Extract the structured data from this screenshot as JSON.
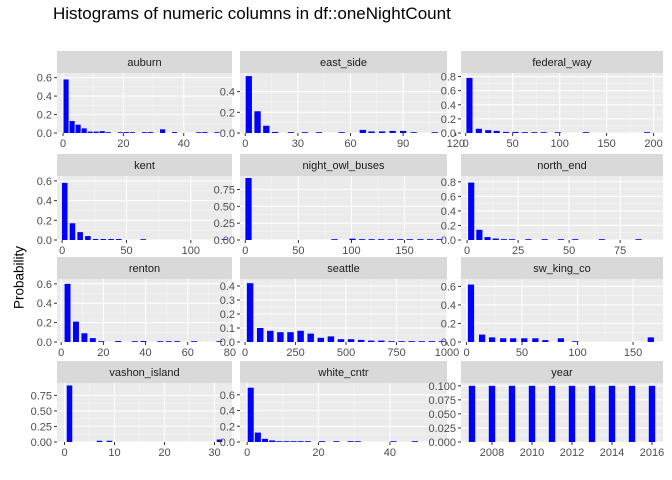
{
  "title": "Histograms of numeric columns in df::oneNightCount",
  "ylabel": "Probability",
  "colors": {
    "bar": "#0000ff",
    "panel_bg": "#ebebeb",
    "strip_bg": "#d9d9d9",
    "grid_major": "#ffffff",
    "grid_minor": "#f5f5f5"
  },
  "chart_data": [
    {
      "type": "bar",
      "name": "auburn",
      "xlim": [
        -2,
        56
      ],
      "ylim": [
        0,
        0.65
      ],
      "xticks": [
        0,
        20,
        40
      ],
      "yticks": [
        0.0,
        0.2,
        0.4,
        0.6
      ],
      "ytick_labels": [
        "0.0",
        "0.2",
        "0.4",
        "0.6"
      ],
      "bar_width": 1.7,
      "x": [
        1,
        3,
        5,
        7,
        9,
        11,
        13,
        15,
        19,
        21,
        23,
        27,
        29,
        33,
        37,
        45,
        47,
        51
      ],
      "y": [
        0.58,
        0.13,
        0.09,
        0.05,
        0.015,
        0.015,
        0.02,
        0.005,
        0.005,
        0.01,
        0.005,
        0.005,
        0.01,
        0.04,
        0.01,
        0.005,
        0.01,
        0.005
      ]
    },
    {
      "type": "bar",
      "name": "east_side",
      "xlim": [
        -3,
        115
      ],
      "ylim": [
        0,
        0.58
      ],
      "xticks": [
        0,
        30,
        60,
        90,
        120
      ],
      "yticks": [
        0.0,
        0.2,
        0.4
      ],
      "ytick_labels": [
        "0.0",
        "0.2",
        "0.4"
      ],
      "bar_width": 3.6,
      "x": [
        2,
        7,
        12,
        17,
        26,
        34,
        42,
        55,
        67,
        72,
        78,
        84,
        90,
        96,
        108
      ],
      "y": [
        0.55,
        0.21,
        0.07,
        0.01,
        0.005,
        0.005,
        0.005,
        0.005,
        0.03,
        0.015,
        0.015,
        0.02,
        0.02,
        0.005,
        0.005
      ]
    },
    {
      "type": "bar",
      "name": "federal_way",
      "xlim": [
        -5,
        210
      ],
      "ylim": [
        0,
        0.85
      ],
      "xticks": [
        0,
        50,
        100,
        150,
        200
      ],
      "yticks": [
        0.0,
        0.2,
        0.4,
        0.6,
        0.8
      ],
      "ytick_labels": [
        "0.0",
        "0.2",
        "0.4",
        "0.6",
        "0.8"
      ],
      "bar_width": 6.5,
      "x": [
        4,
        14,
        24,
        33,
        43,
        53,
        63,
        73,
        83,
        98,
        128,
        193
      ],
      "y": [
        0.78,
        0.06,
        0.04,
        0.03,
        0.015,
        0.015,
        0.01,
        0.005,
        0.005,
        0.005,
        0.005,
        0.005
      ]
    },
    {
      "type": "bar",
      "name": "kent",
      "xlim": [
        -4,
        132
      ],
      "ylim": [
        0,
        0.65
      ],
      "xticks": [
        0,
        50,
        100
      ],
      "yticks": [
        0.0,
        0.2,
        0.4,
        0.6
      ],
      "ytick_labels": [
        "0.0",
        "0.2",
        "0.4",
        "0.6"
      ],
      "bar_width": 4.3,
      "x": [
        2,
        8,
        14,
        20,
        26,
        32,
        38,
        44,
        63,
        126
      ],
      "y": [
        0.58,
        0.17,
        0.08,
        0.04,
        0.01,
        0.01,
        0.01,
        0.01,
        0.005,
        0.005
      ]
    },
    {
      "type": "bar",
      "name": "night_owl_buses",
      "xlim": [
        -5,
        190
      ],
      "ylim": [
        0,
        0.95
      ],
      "xticks": [
        0,
        50,
        100,
        150
      ],
      "yticks": [
        0.0,
        0.25,
        0.5,
        0.75
      ],
      "ytick_labels": [
        "0.00",
        "0.25",
        "0.50",
        "0.75"
      ],
      "bar_width": 5.9,
      "x": [
        3,
        84,
        101,
        110,
        119,
        128,
        137,
        146,
        155,
        165,
        174,
        183
      ],
      "y": [
        0.92,
        0.005,
        0.02,
        0.01,
        0.005,
        0.005,
        0.01,
        0.005,
        0.01,
        0.005,
        0.005,
        0.01
      ]
    },
    {
      "type": "bar",
      "name": "north_end",
      "xlim": [
        -3,
        96
      ],
      "ylim": [
        0,
        0.88
      ],
      "xticks": [
        0,
        25,
        50,
        75
      ],
      "yticks": [
        0.0,
        0.2,
        0.4,
        0.6,
        0.8
      ],
      "ytick_labels": [
        "0.0",
        "0.2",
        "0.4",
        "0.6",
        "0.8"
      ],
      "bar_width": 3.0,
      "x": [
        2,
        6,
        10,
        14,
        18,
        22,
        30,
        38,
        46,
        53,
        66,
        84
      ],
      "y": [
        0.79,
        0.14,
        0.04,
        0.02,
        0.01,
        0.005,
        0.005,
        0.005,
        0.005,
        0.01,
        0.005,
        0.005
      ]
    },
    {
      "type": "bar",
      "name": "renton",
      "xlim": [
        -2,
        81
      ],
      "ylim": [
        0,
        0.65
      ],
      "xticks": [
        0,
        20,
        40,
        60,
        80
      ],
      "yticks": [
        0.0,
        0.2,
        0.4,
        0.6
      ],
      "ytick_labels": [
        "0.0",
        "0.2",
        "0.4",
        "0.6"
      ],
      "bar_width": 2.8,
      "x": [
        3,
        7,
        11,
        15,
        19,
        27,
        35,
        39,
        47,
        51,
        55,
        63,
        75
      ],
      "y": [
        0.6,
        0.21,
        0.09,
        0.04,
        0.005,
        0.01,
        0.005,
        0.01,
        0.005,
        0.005,
        0.005,
        0.005,
        0.005
      ]
    },
    {
      "type": "bar",
      "name": "seattle",
      "xlim": [
        -25,
        1000
      ],
      "ylim": [
        0,
        0.45
      ],
      "xticks": [
        0,
        250,
        500,
        750,
        1000
      ],
      "yticks": [
        0.0,
        0.1,
        0.2,
        0.3,
        0.4
      ],
      "ytick_labels": [
        "0.0",
        "0.1",
        "0.2",
        "0.3",
        "0.4"
      ],
      "bar_width": 32,
      "x": [
        25,
        75,
        125,
        175,
        225,
        275,
        325,
        375,
        425,
        475,
        525,
        575,
        625,
        675,
        725,
        775,
        825,
        875,
        925,
        975
      ],
      "y": [
        0.42,
        0.1,
        0.08,
        0.07,
        0.07,
        0.08,
        0.06,
        0.03,
        0.04,
        0.02,
        0.02,
        0.015,
        0.01,
        0.01,
        0.005,
        0.005,
        0.005,
        0.005,
        0.005,
        0.005
      ]
    },
    {
      "type": "bar",
      "name": "sw_king_co",
      "xlim": [
        -5,
        177
      ],
      "ylim": [
        0,
        0.68
      ],
      "xticks": [
        0,
        50,
        100,
        150
      ],
      "yticks": [
        0.0,
        0.2,
        0.4,
        0.6
      ],
      "ytick_labels": [
        "0.0",
        "0.2",
        "0.4",
        "0.6"
      ],
      "bar_width": 5.6,
      "x": [
        4,
        14,
        23,
        33,
        42,
        52,
        62,
        71,
        85,
        98,
        166
      ],
      "y": [
        0.62,
        0.08,
        0.05,
        0.04,
        0.04,
        0.04,
        0.04,
        0.02,
        0.04,
        0.005,
        0.05
      ]
    },
    {
      "type": "bar",
      "name": "vashon_island",
      "xlim": [
        -1.5,
        33.5
      ],
      "ylim": [
        0,
        0.95
      ],
      "xticks": [
        0,
        10,
        20,
        30
      ],
      "yticks": [
        0.0,
        0.25,
        0.5,
        0.75
      ],
      "ytick_labels": [
        "0.00",
        "0.25",
        "0.50",
        "0.75"
      ],
      "bar_width": 1.1,
      "x": [
        1,
        7,
        9,
        31
      ],
      "y": [
        0.91,
        0.02,
        0.02,
        0.04
      ]
    },
    {
      "type": "bar",
      "name": "white_cntr",
      "xlim": [
        -2,
        56
      ],
      "ylim": [
        0,
        0.75
      ],
      "xticks": [
        0,
        20,
        40
      ],
      "yticks": [
        0.0,
        0.2,
        0.4,
        0.6
      ],
      "ytick_labels": [
        "0.0",
        "0.2",
        "0.4",
        "0.6"
      ],
      "bar_width": 1.7,
      "x": [
        1,
        3,
        5,
        7,
        9,
        11,
        13,
        15,
        17,
        21,
        25,
        29,
        31,
        41,
        47
      ],
      "y": [
        0.69,
        0.12,
        0.04,
        0.02,
        0.01,
        0.01,
        0.005,
        0.005,
        0.005,
        0.01,
        0.005,
        0.005,
        0.005,
        0.005,
        0.005
      ]
    },
    {
      "type": "bar",
      "name": "year",
      "xlim": [
        2006.45,
        2016.55
      ],
      "ylim": [
        0,
        0.105
      ],
      "xticks": [
        2008,
        2010,
        2012,
        2014,
        2016
      ],
      "yticks": [
        0.0,
        0.025,
        0.05,
        0.075,
        0.1
      ],
      "ytick_labels": [
        "0.000",
        "0.025",
        "0.050",
        "0.075",
        "0.100"
      ],
      "bar_width": 0.32,
      "x": [
        2007,
        2008,
        2009,
        2010,
        2011,
        2012,
        2013,
        2014,
        2015,
        2016
      ],
      "y": [
        0.1,
        0.1,
        0.1,
        0.1,
        0.1,
        0.1,
        0.1,
        0.1,
        0.1,
        0.1
      ]
    }
  ]
}
